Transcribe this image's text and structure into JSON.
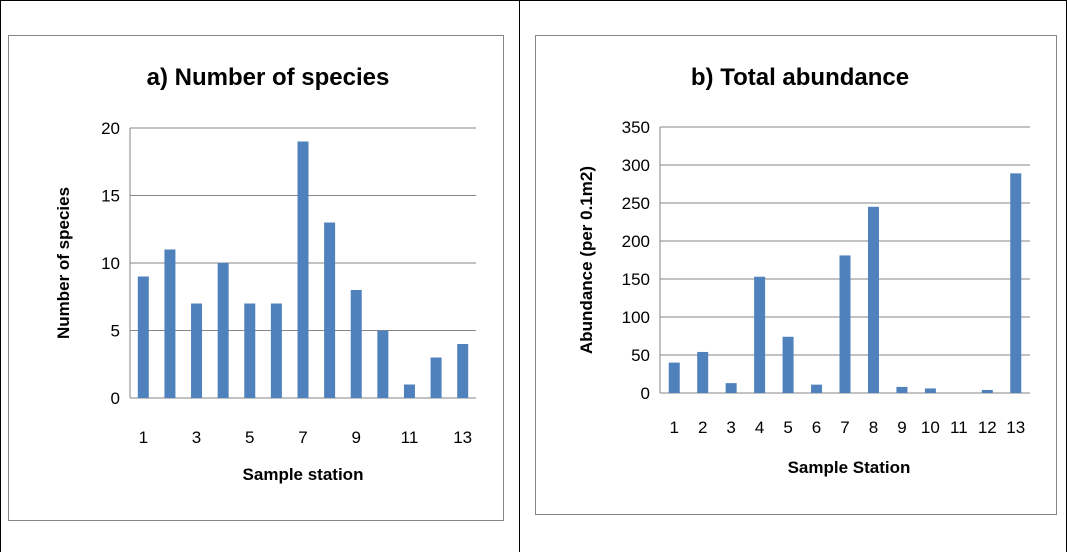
{
  "chart_data": [
    {
      "type": "bar",
      "title": "a) Number of species",
      "xlabel": "Sample station",
      "ylabel": "Number of species",
      "categories": [
        "1",
        "2",
        "3",
        "4",
        "5",
        "6",
        "7",
        "8",
        "9",
        "10",
        "11",
        "12",
        "13"
      ],
      "x_tick_labels": [
        "1",
        "",
        "3",
        "",
        "5",
        "",
        "7",
        "",
        "9",
        "",
        "11",
        "",
        "13"
      ],
      "values": [
        9,
        11,
        7,
        10,
        7,
        7,
        19,
        13,
        8,
        5,
        1,
        3,
        4
      ],
      "ylim": [
        0,
        20
      ],
      "yticks": [
        0,
        5,
        10,
        15,
        20
      ],
      "grid": true,
      "legend": "none",
      "bar_color": "#4F81BD"
    },
    {
      "type": "bar",
      "title": "b) Total abundance",
      "xlabel": "Sample Station",
      "ylabel": "Abundance (per 0.1m2)",
      "categories": [
        "1",
        "2",
        "3",
        "4",
        "5",
        "6",
        "7",
        "8",
        "9",
        "10",
        "11",
        "12",
        "13"
      ],
      "x_tick_labels": [
        "1",
        "2",
        "3",
        "4",
        "5",
        "6",
        "7",
        "8",
        "9",
        "10",
        "11",
        "12",
        "13"
      ],
      "values": [
        40,
        54,
        13,
        153,
        74,
        11,
        181,
        245,
        8,
        6,
        0,
        4,
        289
      ],
      "ylim": [
        0,
        350
      ],
      "yticks": [
        0,
        50,
        100,
        150,
        200,
        250,
        300,
        350
      ],
      "grid": true,
      "legend": "none",
      "bar_color": "#4F81BD"
    }
  ]
}
